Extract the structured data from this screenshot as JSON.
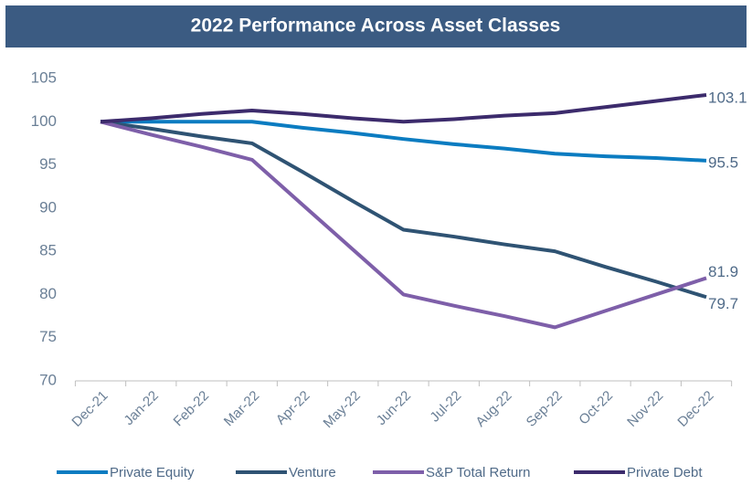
{
  "chart_data": {
    "type": "line",
    "title": "2022 Performance Across Asset Classes",
    "categories": [
      "Dec-21",
      "Jan-22",
      "Feb-22",
      "Mar-22",
      "Apr-22",
      "May-22",
      "Jun-22",
      "Jul-22",
      "Aug-22",
      "Sep-22",
      "Oct-22",
      "Nov-22",
      "Dec-22"
    ],
    "series": [
      {
        "name": "Private Equity",
        "color": "#0b7cc1",
        "values": [
          100,
          100,
          100,
          100,
          99.3,
          98.7,
          98,
          97.4,
          96.9,
          96.3,
          96.0,
          95.8,
          95.5
        ]
      },
      {
        "name": "Venture",
        "color": "#2f5373",
        "values": [
          100,
          99.2,
          98.3,
          97.5,
          94.2,
          90.8,
          87.5,
          86.7,
          85.8,
          85,
          83.2,
          81.5,
          79.7
        ]
      },
      {
        "name": "S&P Total Return",
        "color": "#7e5fa9",
        "values": [
          100,
          98.5,
          97.1,
          95.6,
          90.4,
          85.2,
          80,
          78.7,
          77.5,
          76.2,
          78.1,
          80.0,
          81.9
        ]
      },
      {
        "name": "Private Debt",
        "color": "#3c2b6c",
        "values": [
          100,
          100.4,
          100.9,
          101.3,
          100.9,
          100.4,
          100,
          100.3,
          100.7,
          101,
          101.7,
          102.4,
          103.1
        ]
      }
    ],
    "ylim": [
      70,
      105
    ],
    "yticks": [
      70,
      75,
      80,
      85,
      90,
      95,
      100,
      105
    ],
    "grid": false,
    "legend": "bottom"
  }
}
